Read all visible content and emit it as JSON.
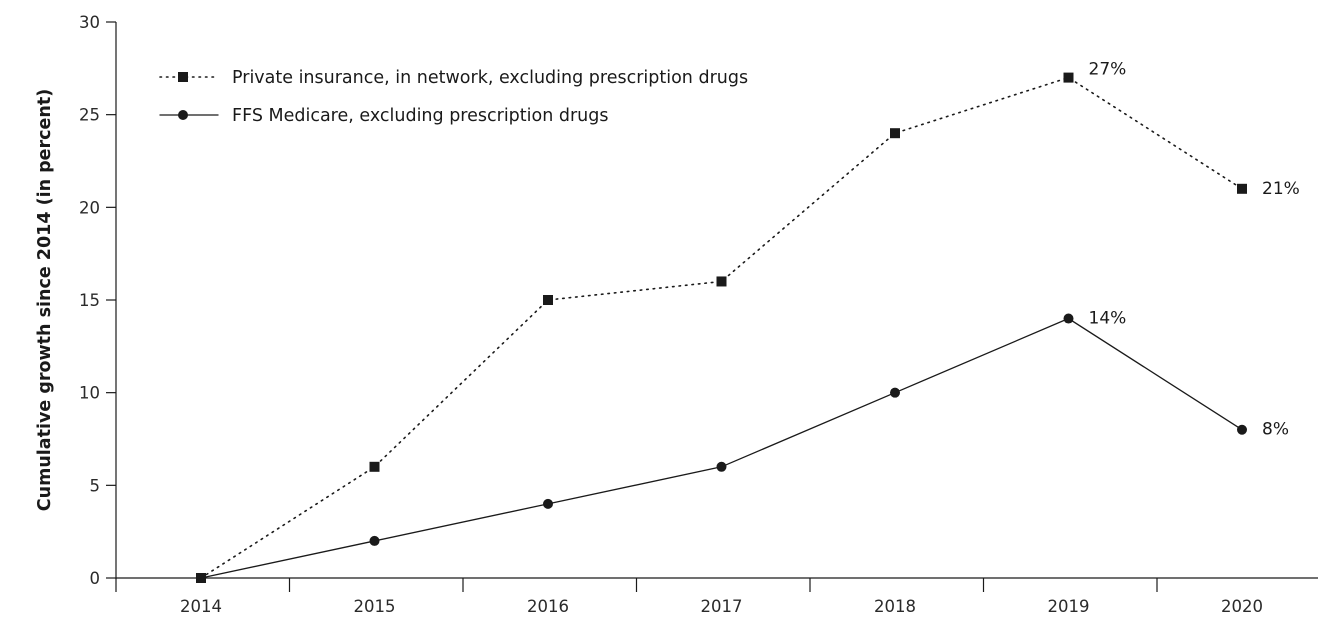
{
  "chart_data": {
    "type": "line",
    "title": "",
    "xlabel": "",
    "ylabel": "Cumulative growth since 2014 (in percent)",
    "x": [
      "2014",
      "2015",
      "2016",
      "2017",
      "2018",
      "2019",
      "2020"
    ],
    "ylim": [
      0,
      30
    ],
    "yticks": [
      "0",
      "5",
      "10",
      "15",
      "20",
      "25",
      "30"
    ],
    "grid": false,
    "legend_position": "top-left",
    "series": [
      {
        "name": "Private insurance, in network, excluding prescription drugs",
        "values": [
          0,
          6,
          15,
          16,
          24,
          27,
          21
        ],
        "line_style": "dotted",
        "marker": "square",
        "color": "#1a1a1a",
        "point_labels": [
          "",
          "",
          "",
          "",
          "",
          "27%",
          "21%"
        ]
      },
      {
        "name": "FFS Medicare, excluding prescription drugs",
        "values": [
          0,
          2,
          4,
          6,
          10,
          14,
          8
        ],
        "line_style": "solid",
        "marker": "circle",
        "color": "#1a1a1a",
        "point_labels": [
          "",
          "",
          "",
          "",
          "",
          "14%",
          "8%"
        ]
      }
    ]
  }
}
